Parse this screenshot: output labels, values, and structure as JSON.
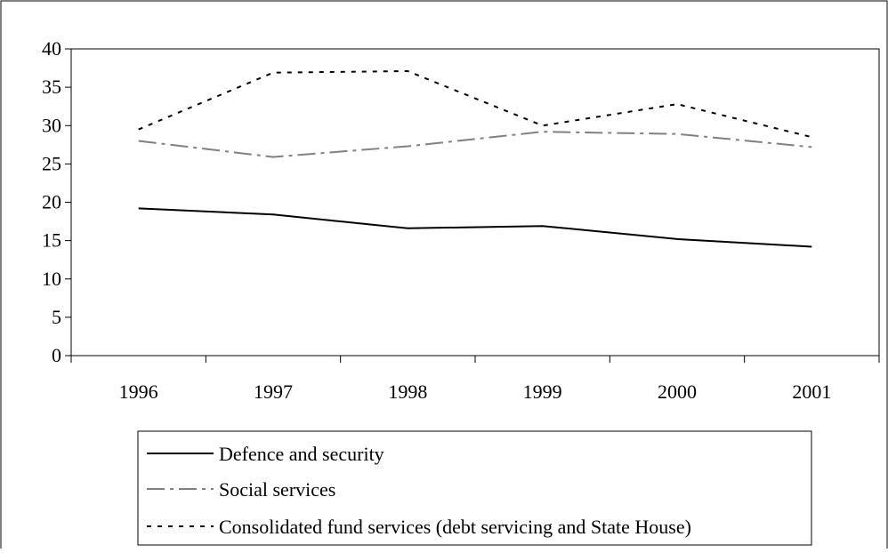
{
  "chart_data": {
    "type": "line",
    "title": "",
    "xlabel": "",
    "ylabel": "",
    "categories": [
      "1996",
      "1997",
      "1998",
      "1999",
      "2000",
      "2001"
    ],
    "ylim": [
      0,
      40
    ],
    "yticks": [
      "0",
      "5",
      "10",
      "15",
      "20",
      "25",
      "30",
      "35",
      "40"
    ],
    "grid": false,
    "legend_position": "bottom",
    "series": [
      {
        "name": "Defence and security",
        "values": [
          19.2,
          18.4,
          16.6,
          16.9,
          15.2,
          14.2
        ],
        "color": "#000000",
        "dash": "solid"
      },
      {
        "name": "Social services",
        "values": [
          28.0,
          25.9,
          27.3,
          29.2,
          28.9,
          27.2
        ],
        "color": "#808080",
        "dash": "dash-dot"
      },
      {
        "name": "Consolidated fund services (debt servicing and State House)",
        "values": [
          29.5,
          36.9,
          37.1,
          30.0,
          32.8,
          28.5
        ],
        "color": "#000000",
        "dash": "dotted"
      }
    ]
  }
}
